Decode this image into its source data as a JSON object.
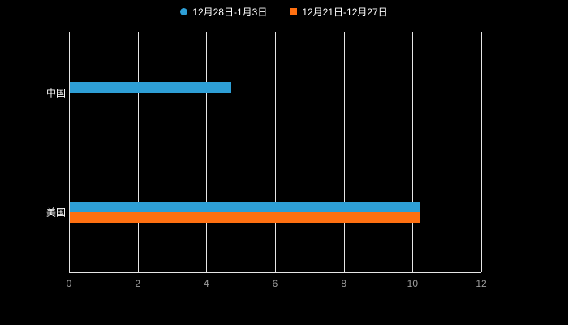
{
  "chart_data": {
    "type": "bar",
    "orientation": "horizontal",
    "title": "",
    "xlabel": "",
    "ylabel": "",
    "categories": [
      "中国",
      "美国"
    ],
    "series": [
      {
        "name": "12月28日-1月3日",
        "color": "#2E9FD6",
        "marker": "circle",
        "values": [
          4.7,
          10.2
        ]
      },
      {
        "name": "12月21日-12月27日",
        "color": "#FF7011",
        "marker": "square",
        "values": [
          0,
          10.2
        ]
      }
    ],
    "xlim": [
      0,
      12
    ],
    "xticks": [
      0,
      2,
      4,
      6,
      8,
      10,
      12
    ],
    "grid": true,
    "legend_position": "top",
    "background_color": "#000000",
    "category_label_color": "#ffffff",
    "tick_label_color": "#9e9e9e",
    "gridline_color": "#e6e6e6"
  }
}
